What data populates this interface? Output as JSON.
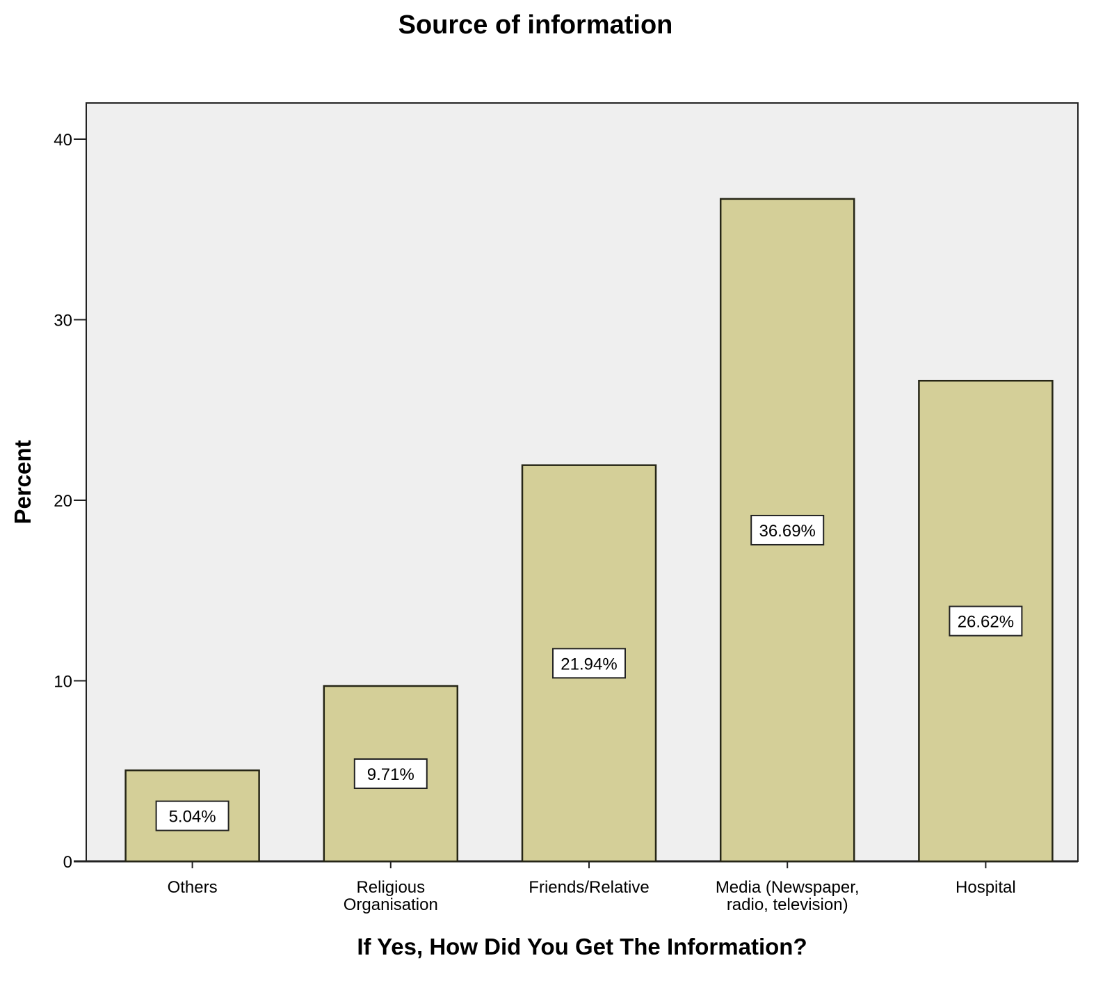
{
  "colors": {
    "bar_fill": "#d4cf98",
    "bar_stroke": "#262616",
    "plot_background": "#efefef",
    "label_box": "#ffffff"
  },
  "chart_data": {
    "type": "bar",
    "title": "Source of information",
    "xlabel": "If Yes, How Did You Get The Information?",
    "ylabel": "Percent",
    "ylim": [
      0,
      42
    ],
    "yticks": [
      0,
      10,
      20,
      30,
      40
    ],
    "grid": false,
    "legend": "none",
    "categories": [
      [
        "Others"
      ],
      [
        "Religious",
        "Organisation"
      ],
      [
        "Friends/Relative"
      ],
      [
        "Media (Newspaper,",
        "radio, television)"
      ],
      [
        "Hospital"
      ]
    ],
    "values": [
      5.04,
      9.71,
      21.94,
      36.69,
      26.62
    ],
    "data_labels": [
      "5.04%",
      "9.71%",
      "21.94%",
      "36.69%",
      "26.62%"
    ]
  }
}
